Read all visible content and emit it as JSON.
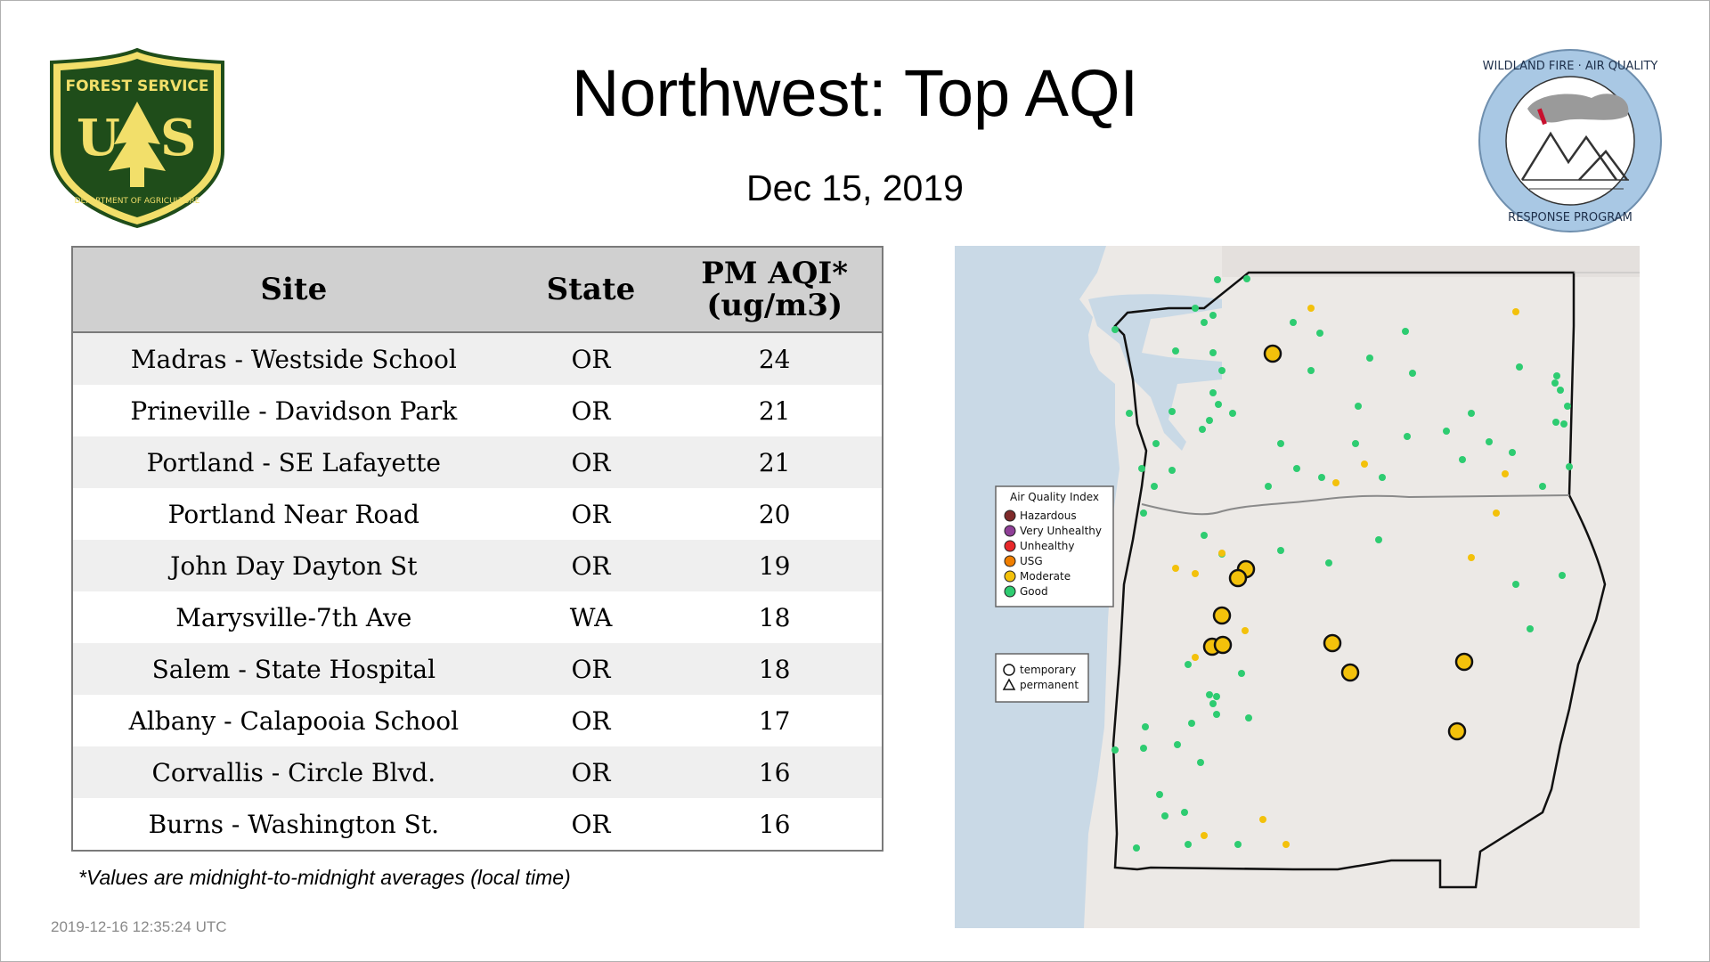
{
  "header": {
    "title": "Northwest: Top AQI",
    "date": "Dec 15, 2019",
    "left_logo_text": [
      "FOREST SERVICE",
      "U",
      "S",
      "DEPARTMENT OF AGRICULTURE"
    ],
    "right_logo_text": [
      "WILDLAND FIRE · AIR QUALITY",
      "RESPONSE PROGRAM"
    ]
  },
  "table": {
    "headers": {
      "site": "Site",
      "state": "State",
      "aqi_line1": "PM AQI*",
      "aqi_line2": "(ug/m3)"
    },
    "rows": [
      {
        "site": "Madras - Westside School",
        "state": "OR",
        "aqi": "24"
      },
      {
        "site": "Prineville - Davidson Park",
        "state": "OR",
        "aqi": "21"
      },
      {
        "site": "Portland - SE Lafayette",
        "state": "OR",
        "aqi": "21"
      },
      {
        "site": "Portland Near Road",
        "state": "OR",
        "aqi": "20"
      },
      {
        "site": "John Day Dayton St",
        "state": "OR",
        "aqi": "19"
      },
      {
        "site": "Marysville-7th Ave",
        "state": "WA",
        "aqi": "18"
      },
      {
        "site": "Salem - State Hospital",
        "state": "OR",
        "aqi": "18"
      },
      {
        "site": "Albany - Calapooia School",
        "state": "OR",
        "aqi": "17"
      },
      {
        "site": "Corvallis - Circle Blvd.",
        "state": "OR",
        "aqi": "16"
      },
      {
        "site": "Burns - Washington St.",
        "state": "OR",
        "aqi": "16"
      }
    ]
  },
  "footnote": "*Values are midnight-to-midnight averages (local time)",
  "timestamp": "2019-12-16 12:35:24 UTC",
  "map": {
    "legend_title": "Air Quality Index",
    "legend_items": [
      {
        "label": "Hazardous",
        "color": "#7e2a2a"
      },
      {
        "label": "Very Unhealthy",
        "color": "#8f3f97"
      },
      {
        "label": "Unhealthy",
        "color": "#e8282a"
      },
      {
        "label": "USG",
        "color": "#f07e00"
      },
      {
        "label": "Moderate",
        "color": "#f3c10b"
      },
      {
        "label": "Good",
        "color": "#2ecc71"
      }
    ],
    "marker_legend": [
      {
        "label": "temporary",
        "icon": "circle-icon"
      },
      {
        "label": "permanent",
        "icon": "triangle-icon"
      }
    ]
  },
  "colors": {
    "good": "#2ecc71",
    "moderate": "#f3c10b",
    "water": "#c9d9e6",
    "land": "#ece9e6",
    "forest_green": "#1f4d1a",
    "forest_yellow": "#f2df6a",
    "wfaq_blue": "#a9c8e4"
  }
}
